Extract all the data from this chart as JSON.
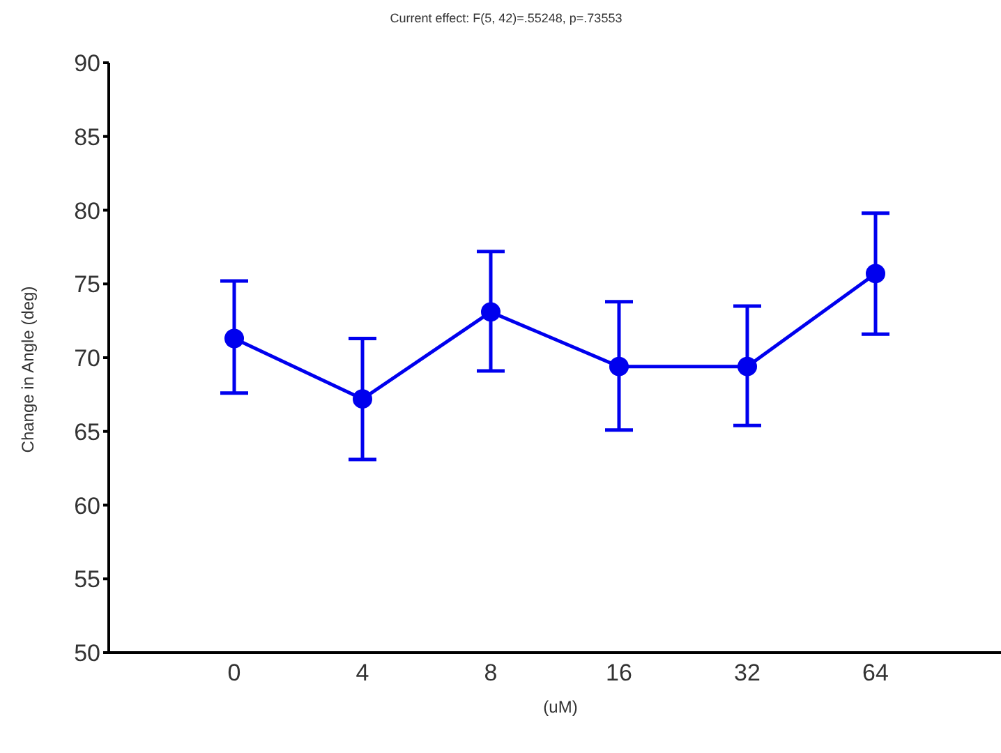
{
  "chart_data": {
    "type": "line",
    "title": "Current effect: F(5, 42)=.55248, p=.73553",
    "xlabel": "(uM)",
    "ylabel": "Change in Angle (deg)",
    "categories": [
      "0",
      "4",
      "8",
      "16",
      "32",
      "64"
    ],
    "series": [
      {
        "color": "#0000ee",
        "values": [
          71.3,
          67.2,
          73.1,
          69.4,
          69.4,
          75.7
        ],
        "errors": [
          [
            67.6,
            75.2
          ],
          [
            63.1,
            71.3
          ],
          [
            69.1,
            77.2
          ],
          [
            65.1,
            73.8
          ],
          [
            65.4,
            73.5
          ],
          [
            71.6,
            79.8
          ]
        ]
      }
    ],
    "ylim": [
      50,
      90
    ],
    "yticks": [
      50,
      55,
      60,
      65,
      70,
      75,
      80,
      85,
      90
    ],
    "grid": false,
    "legend": false,
    "marker": "circle",
    "line_style": "solid"
  }
}
